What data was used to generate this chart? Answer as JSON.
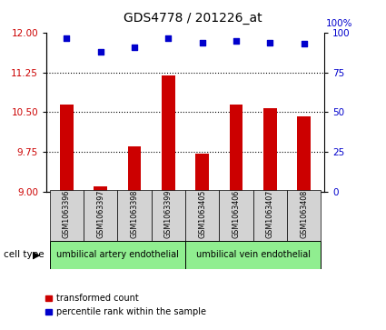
{
  "title": "GDS4778 / 201226_at",
  "samples": [
    "GSM1063396",
    "GSM1063397",
    "GSM1063398",
    "GSM1063399",
    "GSM1063405",
    "GSM1063406",
    "GSM1063407",
    "GSM1063408"
  ],
  "bar_values": [
    10.65,
    9.1,
    9.85,
    11.2,
    9.72,
    10.65,
    10.58,
    10.42
  ],
  "percentile_values": [
    97,
    88,
    91,
    97,
    94,
    95,
    94,
    93
  ],
  "ylim_left": [
    9,
    12
  ],
  "ylim_right": [
    0,
    100
  ],
  "yticks_left": [
    9,
    9.75,
    10.5,
    11.25,
    12
  ],
  "yticks_right": [
    0,
    25,
    50,
    75,
    100
  ],
  "bar_color": "#cc0000",
  "dot_color": "#0000cc",
  "cell_type_groups": [
    {
      "label": "umbilical artery endothelial",
      "start": 0,
      "end": 4,
      "color": "#90ee90"
    },
    {
      "label": "umbilical vein endothelial",
      "start": 4,
      "end": 8,
      "color": "#90ee90"
    }
  ],
  "cell_type_label": "cell type",
  "legend_bar_label": "transformed count",
  "legend_dot_label": "percentile rank within the sample",
  "tick_label_color_left": "#cc0000",
  "tick_label_color_right": "#0000cc",
  "label_gray": "#d3d3d3",
  "right_axis_top_label": "100%"
}
